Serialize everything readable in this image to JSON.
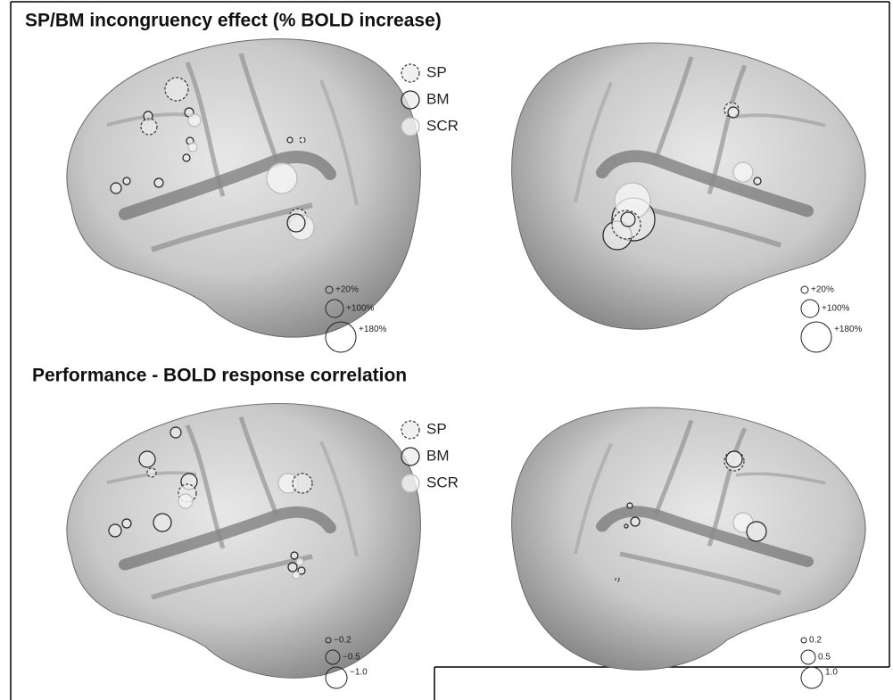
{
  "panels": [
    {
      "title": "SP/BM incongruency effect  (% BOLD increase)",
      "legend": [
        "SP",
        "BM",
        "SCR"
      ],
      "size_legend_left": [
        "+20%",
        "+100%",
        "+180%"
      ],
      "size_legend_right": [
        "+20%",
        "+100%",
        "+180%"
      ]
    },
    {
      "title": "Performance - BOLD response correlation",
      "legend": [
        "SP",
        "BM",
        "SCR"
      ],
      "size_legend_left": [
        "−0.2",
        "−0.5",
        "−1.0"
      ],
      "size_legend_right": [
        "0.2",
        "0.5",
        "1.0"
      ]
    }
  ]
}
